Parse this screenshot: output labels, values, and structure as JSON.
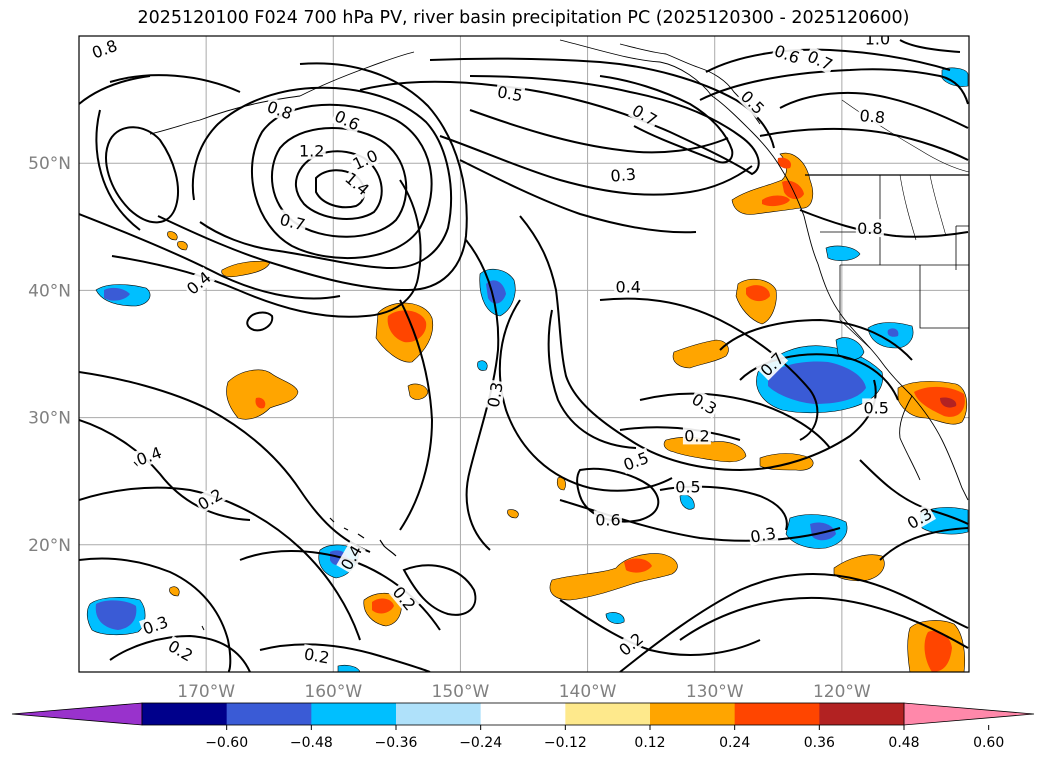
{
  "title": "2025120100 F024 700 hPa PV, river basin precipitation PC (2025120300 - 2025120600)",
  "map": {
    "lon_range": [
      -180,
      -110
    ],
    "lat_range": [
      10,
      60
    ],
    "lat_ticks": [
      {
        "label": "50°N",
        "value": 50
      },
      {
        "label": "40°N",
        "value": 40
      },
      {
        "label": "30°N",
        "value": 30
      },
      {
        "label": "20°N",
        "value": 20
      }
    ],
    "lon_ticks": [
      {
        "label": "170°W",
        "value": -170
      },
      {
        "label": "160°W",
        "value": -160
      },
      {
        "label": "150°W",
        "value": -150
      },
      {
        "label": "140°W",
        "value": -140
      },
      {
        "label": "130°W",
        "value": -130
      },
      {
        "label": "120°W",
        "value": -120
      }
    ],
    "grid": true
  },
  "contour_labels": [
    {
      "text": "0.8",
      "lon": -178,
      "lat": 59,
      "rot": -20
    },
    {
      "text": "1.0",
      "lon": -117.2,
      "lat": 59.8,
      "rot": 0
    },
    {
      "text": "0.6",
      "lon": -124.3,
      "lat": 58.6,
      "rot": 20
    },
    {
      "text": "0.7",
      "lon": -121.7,
      "lat": 58.1,
      "rot": 25
    },
    {
      "text": "0.5",
      "lon": -146.1,
      "lat": 55.5,
      "rot": 10
    },
    {
      "text": "0.5",
      "lon": -127.0,
      "lat": 54.8,
      "rot": 45
    },
    {
      "text": "0.7",
      "lon": -135.5,
      "lat": 53.8,
      "rot": 30
    },
    {
      "text": "0.8",
      "lon": -117.6,
      "lat": 53.7,
      "rot": 5
    },
    {
      "text": "0.8",
      "lon": -164.2,
      "lat": 54.2,
      "rot": 20
    },
    {
      "text": "0.6",
      "lon": -158.9,
      "lat": 53.4,
      "rot": 25
    },
    {
      "text": "1.2",
      "lon": -161.7,
      "lat": 51.0,
      "rot": 0
    },
    {
      "text": "1.0",
      "lon": -157.5,
      "lat": 50.3,
      "rot": -25
    },
    {
      "text": "1.4",
      "lon": -158.1,
      "lat": 48.4,
      "rot": 40
    },
    {
      "text": "0.3",
      "lon": -137.2,
      "lat": 49.1,
      "rot": -5
    },
    {
      "text": "0.7",
      "lon": -163.2,
      "lat": 45.4,
      "rot": 15
    },
    {
      "text": "0.8",
      "lon": -117.8,
      "lat": 44.9,
      "rot": 0
    },
    {
      "text": "0.4",
      "lon": -170.6,
      "lat": 40.6,
      "rot": -40
    },
    {
      "text": "0.4",
      "lon": -136.8,
      "lat": 40.3,
      "rot": 0
    },
    {
      "text": "0.7",
      "lon": -125.5,
      "lat": 34.2,
      "rot": -45
    },
    {
      "text": "0.3",
      "lon": -147.3,
      "lat": 31.8,
      "rot": -80
    },
    {
      "text": "0.3",
      "lon": -130.8,
      "lat": 31.1,
      "rot": 30
    },
    {
      "text": "0.5",
      "lon": -117.3,
      "lat": 30.8,
      "rot": 0
    },
    {
      "text": "0.2",
      "lon": -131.4,
      "lat": 28.6,
      "rot": 0
    },
    {
      "text": "0.4",
      "lon": -174.5,
      "lat": 27.0,
      "rot": -20
    },
    {
      "text": "0.5",
      "lon": -136.2,
      "lat": 26.6,
      "rot": -20
    },
    {
      "text": "0.5",
      "lon": -132.1,
      "lat": 24.6,
      "rot": 0
    },
    {
      "text": "0.2",
      "lon": -169.7,
      "lat": 23.6,
      "rot": -30
    },
    {
      "text": "0.6",
      "lon": -138.4,
      "lat": 22.0,
      "rot": 0
    },
    {
      "text": "0.3",
      "lon": -113.9,
      "lat": 22.1,
      "rot": -30
    },
    {
      "text": "0.3",
      "lon": -126.2,
      "lat": 20.8,
      "rot": -10
    },
    {
      "text": "0.4",
      "lon": -158.6,
      "lat": 19.0,
      "rot": -60
    },
    {
      "text": "0.2",
      "lon": -154.4,
      "lat": 15.8,
      "rot": 50
    },
    {
      "text": "0.3",
      "lon": -174.0,
      "lat": 13.7,
      "rot": -20
    },
    {
      "text": "0.2",
      "lon": -172.0,
      "lat": 11.7,
      "rot": 30
    },
    {
      "text": "0.2",
      "lon": -161.3,
      "lat": 11.3,
      "rot": 10
    },
    {
      "text": "0.2",
      "lon": -136.6,
      "lat": 12.2,
      "rot": -40
    }
  ],
  "colorbar": {
    "levels": [
      -0.72,
      -0.6,
      -0.48,
      -0.36,
      -0.24,
      -0.12,
      0.12,
      0.24,
      0.36,
      0.48,
      0.6,
      0.72
    ],
    "colors": [
      "#9932cc",
      "#00008b",
      "#3a5bd6",
      "#00bfff",
      "#afe1fa",
      "#ffffff",
      "#fee98c",
      "#ffa500",
      "#ff4500",
      "#b22222",
      "#ff88aa"
    ],
    "tick_labels": [
      "−0.60",
      "−0.48",
      "−0.36",
      "−0.24",
      "−0.12",
      "0.12",
      "0.24",
      "0.36",
      "0.48",
      "0.60"
    ],
    "extend": "both"
  }
}
